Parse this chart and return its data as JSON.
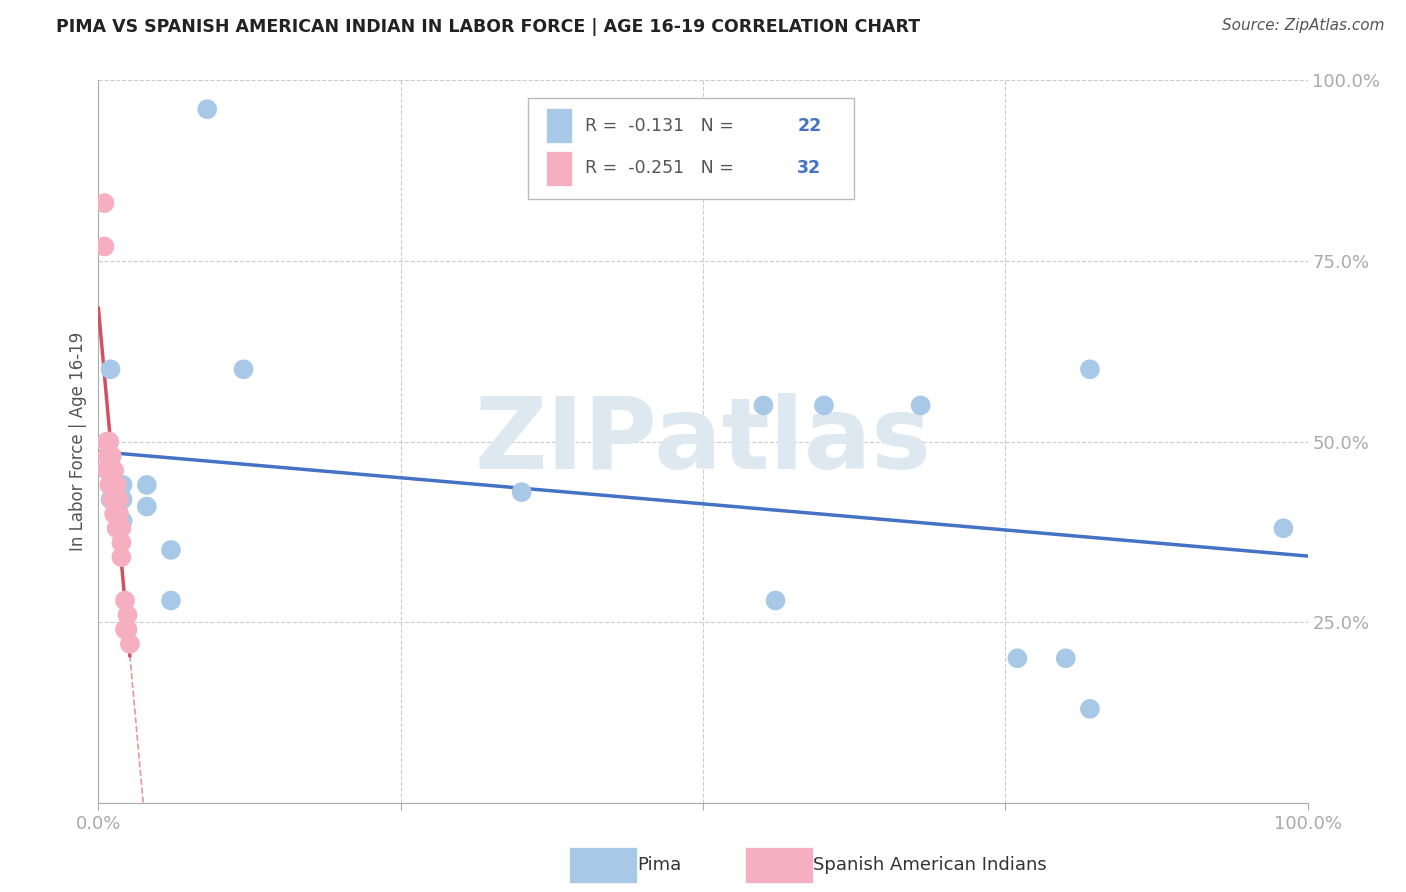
{
  "title": "PIMA VS SPANISH AMERICAN INDIAN IN LABOR FORCE | AGE 16-19 CORRELATION CHART",
  "source": "Source: ZipAtlas.com",
  "ylabel": "In Labor Force | Age 16-19",
  "r_pima": -0.131,
  "n_pima": 22,
  "r_spanish": -0.251,
  "n_spanish": 32,
  "pima_color": "#a8c8e8",
  "spanish_color": "#f5afc0",
  "pima_line_color": "#4472c4",
  "spanish_line_color": "#d45060",
  "title_color": "#222222",
  "tick_label_color": "#4472c4",
  "background_color": "#ffffff",
  "grid_color": "#cccccc",
  "watermark_text": "ZIPatlas",
  "watermark_color": "#dde8f0",
  "xlim": [
    0.0,
    1.0
  ],
  "ylim": [
    0.0,
    1.0
  ],
  "pima_x": [
    0.09,
    0.01,
    0.01,
    0.01,
    0.02,
    0.02,
    0.02,
    0.04,
    0.04,
    0.12,
    0.35,
    0.55,
    0.6,
    0.68,
    0.82,
    0.8,
    0.76,
    0.56,
    0.82,
    0.06,
    0.06,
    0.98
  ],
  "pima_y": [
    0.96,
    0.6,
    0.44,
    0.42,
    0.44,
    0.42,
    0.39,
    0.44,
    0.41,
    0.6,
    0.43,
    0.55,
    0.55,
    0.55,
    0.6,
    0.2,
    0.2,
    0.28,
    0.13,
    0.35,
    0.28,
    0.38
  ],
  "spanish_x": [
    0.005,
    0.005,
    0.007,
    0.007,
    0.007,
    0.009,
    0.009,
    0.009,
    0.009,
    0.011,
    0.011,
    0.011,
    0.011,
    0.013,
    0.013,
    0.013,
    0.013,
    0.015,
    0.015,
    0.015,
    0.015,
    0.017,
    0.017,
    0.017,
    0.019,
    0.019,
    0.019,
    0.022,
    0.022,
    0.024,
    0.024,
    0.026
  ],
  "spanish_y": [
    0.83,
    0.77,
    0.5,
    0.48,
    0.46,
    0.5,
    0.48,
    0.46,
    0.44,
    0.48,
    0.46,
    0.44,
    0.42,
    0.46,
    0.44,
    0.42,
    0.4,
    0.44,
    0.42,
    0.4,
    0.38,
    0.42,
    0.4,
    0.38,
    0.38,
    0.36,
    0.34,
    0.28,
    0.24,
    0.26,
    0.24,
    0.22
  ],
  "ytick_positions": [
    0.0,
    0.25,
    0.5,
    0.75,
    1.0
  ],
  "ytick_labels": [
    "",
    "25.0%",
    "50.0%",
    "75.0%",
    "100.0%"
  ],
  "xtick_positions": [
    0.0,
    0.25,
    0.5,
    0.75,
    1.0
  ],
  "xtick_labels": [
    "0.0%",
    "",
    "",
    "",
    "100.0%"
  ]
}
